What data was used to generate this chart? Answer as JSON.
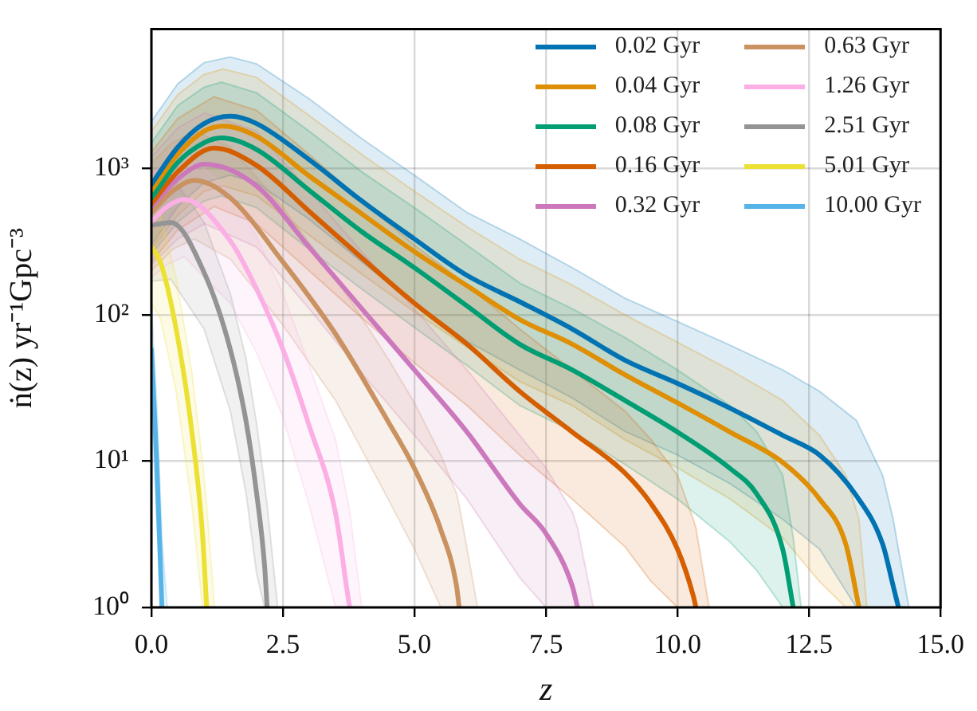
{
  "chart_data": {
    "type": "line",
    "xlabel": "z",
    "ylabel": "ṅ(z) yr⁻¹Gpc⁻³",
    "log": true,
    "grid": true,
    "legend": "top right",
    "marker": "none",
    "xlim": [
      0,
      15
    ],
    "xticks": [
      {
        "value": 0,
        "label": "0.0"
      },
      {
        "value": 2.5,
        "label": "2.5"
      },
      {
        "value": 5,
        "label": "5.0"
      },
      {
        "value": 7.5,
        "label": "7.5"
      },
      {
        "value": 10,
        "label": "10.0"
      },
      {
        "value": 12.5,
        "label": "12.5"
      },
      {
        "value": 15,
        "label": "15.0"
      }
    ],
    "ylim": [
      1,
      9000
    ],
    "yticks": [
      {
        "value": 1,
        "label": "10⁰"
      },
      {
        "value": 10,
        "label": "10¹"
      },
      {
        "value": 100,
        "label": "10²"
      },
      {
        "value": 1000,
        "label": "10³"
      }
    ],
    "series": [
      {
        "name": "0.02 Gyr",
        "color": "#0173b2",
        "x": [
          0,
          0.5,
          1,
          1.5,
          2,
          3,
          4,
          5,
          6,
          7,
          8,
          9,
          10,
          11,
          12,
          12.7,
          13.4,
          13.9,
          14.1,
          14.2,
          14.4
        ],
        "values": [
          780,
          1400,
          2030,
          2280,
          2030,
          1150,
          600,
          330,
          186,
          123,
          80,
          49,
          34,
          23,
          15,
          11,
          5.8,
          2.7,
          1.4,
          1,
          null
        ],
        "upper": [
          2100,
          3800,
          5300,
          5800,
          5200,
          3000,
          1600,
          900,
          500,
          330,
          210,
          130,
          90,
          62,
          42,
          30,
          19,
          8,
          4,
          2.5,
          1
        ],
        "lower": [
          300,
          550,
          800,
          900,
          800,
          450,
          230,
          120,
          66,
          42,
          27,
          16,
          11,
          7,
          4,
          2.5,
          1,
          1,
          1,
          1,
          1
        ]
      },
      {
        "name": "0.04 Gyr",
        "color": "#de8f05",
        "x": [
          0,
          0.5,
          1,
          1.37,
          2,
          3,
          4,
          5,
          6,
          7,
          8,
          9,
          10,
          11,
          12,
          12.7,
          13.2,
          13.45,
          13.6
        ],
        "values": [
          710,
          1250,
          1800,
          1950,
          1660,
          890,
          490,
          270,
          158,
          93,
          63,
          39,
          25,
          15.8,
          9.8,
          5.5,
          2.7,
          1,
          null
        ],
        "upper": [
          1800,
          3200,
          4400,
          4800,
          4200,
          2300,
          1250,
          700,
          400,
          240,
          160,
          100,
          65,
          42,
          26,
          15,
          8,
          4,
          1
        ],
        "lower": [
          280,
          480,
          700,
          760,
          650,
          350,
          190,
          105,
          60,
          35,
          24,
          14,
          9,
          5.5,
          3,
          1.5,
          1,
          1,
          1
        ]
      },
      {
        "name": "0.08 Gyr",
        "color": "#029e73",
        "x": [
          0,
          0.5,
          1,
          1.33,
          2,
          3,
          4,
          5,
          6,
          7,
          8,
          9,
          10,
          11,
          11.5,
          12,
          12.2,
          12.35
        ],
        "values": [
          630,
          1100,
          1500,
          1620,
          1350,
          710,
          370,
          210,
          115,
          63,
          42,
          26,
          15.8,
          8.9,
          6,
          2.5,
          1,
          null
        ],
        "upper": [
          1500,
          2700,
          3600,
          3900,
          3300,
          1800,
          950,
          540,
          300,
          165,
          110,
          70,
          42,
          24,
          16,
          8,
          3,
          1
        ],
        "lower": [
          260,
          430,
          600,
          650,
          540,
          280,
          150,
          82,
          45,
          24,
          16,
          9.5,
          5.5,
          2.8,
          1.8,
          1,
          1,
          1
        ]
      },
      {
        "name": "0.16 Gyr",
        "color": "#d55e00",
        "x": [
          0,
          0.5,
          1.19,
          2,
          3,
          4,
          5,
          6,
          7,
          8,
          9,
          9.5,
          10,
          10.3,
          10.35,
          10.6
        ],
        "values": [
          575,
          950,
          1380,
          1050,
          510,
          245,
          120,
          63,
          30,
          15.8,
          8.3,
          5.1,
          2.5,
          1.2,
          1,
          null
        ],
        "upper": [
          1300,
          2200,
          3100,
          2500,
          1250,
          600,
          300,
          160,
          80,
          42,
          22,
          14,
          8,
          4,
          3.5,
          1
        ],
        "lower": [
          230,
          380,
          550,
          420,
          200,
          95,
          47,
          24,
          11,
          5.5,
          2.6,
          1.5,
          1,
          1,
          1,
          1
        ]
      },
      {
        "name": "0.32 Gyr",
        "color": "#cc78bc",
        "x": [
          0,
          0.5,
          1.01,
          2,
          3,
          4,
          5,
          6,
          7,
          7.5,
          8,
          8.1,
          8.4
        ],
        "values": [
          550,
          850,
          1070,
          760,
          290,
          110,
          42,
          15.8,
          5.1,
          3.2,
          1.4,
          1,
          null
        ],
        "upper": [
          1200,
          1900,
          2400,
          1800,
          700,
          270,
          110,
          42,
          15,
          9,
          4.5,
          3.5,
          1
        ],
        "lower": [
          220,
          330,
          420,
          290,
          110,
          40,
          15,
          5.5,
          1.6,
          1,
          1,
          1,
          1
        ]
      },
      {
        "name": "0.63 Gyr",
        "color": "#ca9161",
        "x": [
          0,
          0.4,
          0.82,
          1.5,
          2.5,
          3.5,
          4.5,
          5,
          5.5,
          5.8,
          5.85,
          6.2
        ],
        "values": [
          500,
          700,
          830,
          630,
          230,
          74,
          18.6,
          8.9,
          3.4,
          1.4,
          1,
          null
        ],
        "upper": [
          1100,
          1500,
          1800,
          1400,
          540,
          180,
          50,
          25,
          11,
          6,
          5,
          1
        ],
        "lower": [
          200,
          280,
          330,
          240,
          85,
          26,
          5.5,
          2.5,
          1,
          1,
          1,
          1
        ]
      },
      {
        "name": "1.26 Gyr",
        "color": "#fbafe4",
        "x": [
          0,
          0.3,
          0.62,
          1.5,
          2,
          2.5,
          3,
          3.5,
          3.75,
          3.77,
          4
        ],
        "values": [
          435,
          550,
          615,
          320,
          150,
          58,
          17.4,
          4.4,
          1.1,
          1,
          null
        ],
        "upper": [
          900,
          1150,
          1300,
          700,
          340,
          140,
          45,
          14,
          5,
          4.5,
          1
        ],
        "lower": [
          180,
          220,
          250,
          120,
          55,
          20,
          5,
          1,
          1,
          1,
          1
        ]
      },
      {
        "name": "2.51 Gyr",
        "color": "#949494",
        "x": [
          0,
          0.37,
          1,
          1.5,
          1.8,
          2,
          2.15,
          2.2,
          2.4
        ],
        "values": [
          410,
          427,
          195,
          58,
          18.6,
          6,
          1.95,
          1,
          null
        ],
        "upper": [
          850,
          900,
          430,
          140,
          50,
          18,
          7,
          5,
          1
        ],
        "lower": [
          170,
          175,
          80,
          22,
          6,
          1.7,
          1,
          1,
          1
        ]
      },
      {
        "name": "5.01 Gyr",
        "color": "#ece133",
        "x": [
          0,
          0.17,
          0.47,
          0.77,
          0.97,
          1.05,
          1.2
        ],
        "values": [
          290,
          230,
          80,
          15.8,
          3.2,
          1,
          null
        ],
        "upper": [
          600,
          480,
          180,
          40,
          10,
          5,
          1
        ],
        "lower": [
          120,
          95,
          30,
          5,
          1,
          1,
          1
        ]
      },
      {
        "name": "10.00 Gyr",
        "color": "#56b4e9",
        "x": [
          0,
          0.1,
          0.2,
          0.3
        ],
        "values": [
          58,
          10,
          1,
          null
        ],
        "upper": [
          120,
          25,
          3,
          1
        ],
        "lower": [
          25,
          4,
          1,
          1
        ]
      }
    ]
  }
}
